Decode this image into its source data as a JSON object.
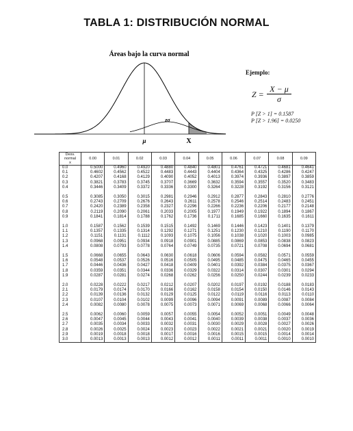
{
  "title": "TABLA 1: DISTRIBUCIÓN NORMAL",
  "figure": {
    "curve_title": "Áreas bajo la curva normal",
    "z_label": "zσ",
    "mu_label": "μ",
    "x_label": "X"
  },
  "example": {
    "title": "Ejemplo:",
    "z_lhs": "Z =",
    "numerator": "X − μ",
    "denominator": "σ",
    "p1": "P [Z > 1] = 0.1587",
    "p2": "P [Z > 1.96] = 0.0250"
  },
  "table": {
    "header_label": [
      "Desv.",
      "normal",
      "x"
    ],
    "columns": [
      "0.00",
      "0.01",
      "0.02",
      "0.03",
      "0.04",
      "0.05",
      "0.06",
      "0.07",
      "0.08",
      "0.09"
    ],
    "groups": [
      [
        {
          "z": "0.0",
          "v": [
            "0.5000",
            "0.4960",
            "0.4920",
            "0.4880",
            "0.4840",
            "0.4801",
            "0.4761",
            "0.4721",
            "0.4681",
            "0.4641"
          ]
        },
        {
          "z": "0.1",
          "v": [
            "0.4602",
            "0.4562",
            "0.4522",
            "0.4483",
            "0.4443",
            "0.4404",
            "0.4364",
            "0.4325",
            "0.4286",
            "0.4247"
          ]
        },
        {
          "z": "0.2",
          "v": [
            "0.4207",
            "0.4168",
            "0.4129",
            "0.4090",
            "0.4052",
            "0.4013",
            "0.3974",
            "0.3936",
            "0.3897",
            "0.3859"
          ]
        },
        {
          "z": "0.3",
          "v": [
            "0.3821",
            "0.3783",
            "0.3745",
            "0.3707",
            "0.3669",
            "0.3632",
            "0.3594",
            "0.3557",
            "0.3520",
            "0.3483"
          ]
        },
        {
          "z": "0.4",
          "v": [
            "0.3446",
            "0.3409",
            "0.3372",
            "0.3336",
            "0.3300",
            "0.3264",
            "0.3228",
            "0.3192",
            "0.3156",
            "0.3121"
          ]
        }
      ],
      [
        {
          "z": "0.5",
          "v": [
            "0.3085",
            "0.3050",
            "0.3015",
            "0.2981",
            "0.2946",
            "0.2912",
            "0.2877",
            "0.2843",
            "0.2810",
            "0.2776"
          ]
        },
        {
          "z": "0.6",
          "v": [
            "0.2743",
            "0.2709",
            "0.2676",
            "0.2643",
            "0.2611",
            "0.2578",
            "0.2546",
            "0.2514",
            "0.2483",
            "0.2451"
          ]
        },
        {
          "z": "0.7",
          "v": [
            "0.2420",
            "0.2389",
            "0.2358",
            "0.2327",
            "0.2296",
            "0.2266",
            "0.2236",
            "0.2206",
            "0.2177",
            "0.2148"
          ]
        },
        {
          "z": "0.8",
          "v": [
            "0.2119",
            "0.2090",
            "0.2061",
            "0.2033",
            "0.2005",
            "0.1977",
            "0.1949",
            "0.1922",
            "0.1894",
            "0.1867"
          ]
        },
        {
          "z": "0.9",
          "v": [
            "0.1841",
            "0.1814",
            "0.1788",
            "0.1762",
            "0.1736",
            "0.1711",
            "0.1685",
            "0.1660",
            "0.1635",
            "0.1611"
          ]
        }
      ],
      [
        {
          "z": "1.0",
          "v": [
            "0.1587",
            "0.1562",
            "0.1539",
            "0.1515",
            "0.1492",
            "0.1469",
            "0.1446",
            "0.1423",
            "0.1401",
            "0.1379"
          ]
        },
        {
          "z": "1.1",
          "v": [
            "0.1357",
            "0.1335",
            "0.1314",
            "0.1292",
            "0.1271",
            "0.1251",
            "0.1230",
            "0.1210",
            "0.1190",
            "0.1170"
          ]
        },
        {
          "z": "1.2",
          "v": [
            "0.1151",
            "0.1131",
            "0.1112",
            "0.1093",
            "0.1075",
            "0.1056",
            "0.1038",
            "0.1020",
            "0.1003",
            "0.0985"
          ]
        },
        {
          "z": "1.3",
          "v": [
            "0.0968",
            "0.0951",
            "0.0934",
            "0.0918",
            "0.0901",
            "0.0885",
            "0.0869",
            "0.0853",
            "0.0838",
            "0.0823"
          ]
        },
        {
          "z": "1.4",
          "v": [
            "0.0808",
            "0.0793",
            "0.0778",
            "0.0764",
            "0.0749",
            "0.0735",
            "0.0721",
            "0.0708",
            "0.0694",
            "0.0681"
          ]
        }
      ],
      [
        {
          "z": "1.5",
          "v": [
            "0.0668",
            "0.0655",
            "0.0643",
            "0.0630",
            "0.0618",
            "0.0606",
            "0.0594",
            "0.0582",
            "0.0571",
            "0.0559"
          ]
        },
        {
          "z": "1.6",
          "v": [
            "0.0548",
            "0.0537",
            "0.0526",
            "0.0516",
            "0.0505",
            "0.0495",
            "0.0485",
            "0.0475",
            "0.0465",
            "0.0455"
          ]
        },
        {
          "z": "1.7",
          "v": [
            "0.0446",
            "0.0436",
            "0.0427",
            "0.0418",
            "0.0409",
            "0.0401",
            "0.0392",
            "0.0384",
            "0.0375",
            "0.0367"
          ]
        },
        {
          "z": "1.8",
          "v": [
            "0.0359",
            "0.0351",
            "0.0344",
            "0.0336",
            "0.0329",
            "0.0322",
            "0.0314",
            "0.0307",
            "0.0301",
            "0.0294"
          ]
        },
        {
          "z": "1.9",
          "v": [
            "0.0287",
            "0.0281",
            "0.0274",
            "0.0268",
            "0.0262",
            "0.0256",
            "0.0250",
            "0.0244",
            "0.0239",
            "0.0233"
          ]
        }
      ],
      [
        {
          "z": "2.0",
          "v": [
            "0.0228",
            "0.0222",
            "0.0217",
            "0.0212",
            "0.0207",
            "0.0202",
            "0.0197",
            "0.0192",
            "0.0188",
            "0.0183"
          ]
        },
        {
          "z": "2.1",
          "v": [
            "0.0179",
            "0.0174",
            "0.0170",
            "0.0166",
            "0.0162",
            "0.0158",
            "0.0154",
            "0.0150",
            "0.0146",
            "0.0143"
          ]
        },
        {
          "z": "2.2",
          "v": [
            "0.0139",
            "0.0136",
            "0.0132",
            "0.0129",
            "0.0125",
            "0.0122",
            "0.0119",
            "0.0116",
            "0.0113",
            "0.0110"
          ]
        },
        {
          "z": "2.3",
          "v": [
            "0.0107",
            "0.0104",
            "0.0102",
            "0.0099",
            "0.0096",
            "0.0094",
            "0.0091",
            "0.0089",
            "0.0087",
            "0.0084"
          ]
        },
        {
          "z": "2.4",
          "v": [
            "0.0082",
            "0.0080",
            "0.0078",
            "0.0075",
            "0.0073",
            "0.0071",
            "0.0069",
            "0.0068",
            "0.0066",
            "0.0064"
          ]
        }
      ],
      [
        {
          "z": "2.5",
          "v": [
            "0.0062",
            "0.0060",
            "0.0059",
            "0.0057",
            "0.0055",
            "0.0054",
            "0.0052",
            "0.0051",
            "0.0049",
            "0.0048"
          ]
        },
        {
          "z": "2.6",
          "v": [
            "0.0047",
            "0.0045",
            "0.0044",
            "0.0043",
            "0.0041",
            "0.0040",
            "0.0039",
            "0.0038",
            "0.0037",
            "0.0036"
          ]
        },
        {
          "z": "2.7",
          "v": [
            "0.0035",
            "0.0034",
            "0.0033",
            "0.0032",
            "0.0031",
            "0.0030",
            "0.0029",
            "0.0028",
            "0.0027",
            "0.0026"
          ]
        },
        {
          "z": "2.8",
          "v": [
            "0.0026",
            "0.0025",
            "0.0024",
            "0.0023",
            "0.0023",
            "0.0022",
            "0.0021",
            "0.0021",
            "0.0020",
            "0.0019"
          ]
        },
        {
          "z": "2.9",
          "v": [
            "0.0019",
            "0.0018",
            "0.0018",
            "0.0017",
            "0.0016",
            "0.0016",
            "0.0015",
            "0.0015",
            "0.0014",
            "0.0014"
          ]
        },
        {
          "z": "3.0",
          "v": [
            "0.0013",
            "0.0013",
            "0.0013",
            "0.0012",
            "0.0012",
            "0.0011",
            "0.0011",
            "0.0011",
            "0.0010",
            "0.0010"
          ]
        }
      ]
    ]
  }
}
